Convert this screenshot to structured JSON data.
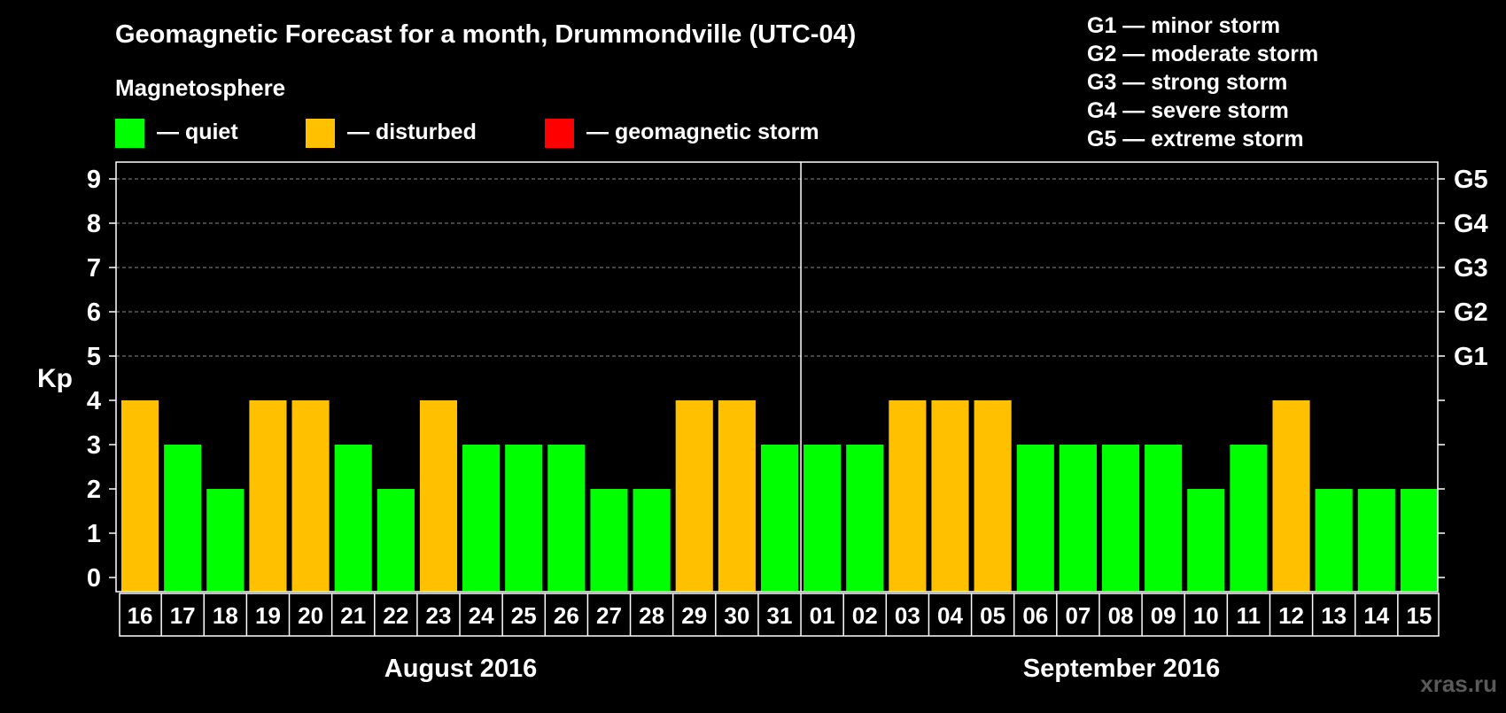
{
  "chart_data": {
    "type": "bar",
    "title": "Geomagnetic Forecast for a month, Drummondville (UTC-04)",
    "legend_title": "Magnetosphere",
    "legend": [
      {
        "label": "— quiet",
        "color": "#00ff00"
      },
      {
        "label": "— disturbed",
        "color": "#ffc000"
      },
      {
        "label": "— geomagnetic storm",
        "color": "#ff0000"
      }
    ],
    "storm_scale": [
      "G1 — minor storm",
      "G2 — moderate storm",
      "G3 — strong storm",
      "G4 — severe storm",
      "G5 — extreme storm"
    ],
    "ylabel": "Kp",
    "ylim": [
      0,
      9
    ],
    "y_ticks": [
      "0",
      "1",
      "2",
      "3",
      "4",
      "5",
      "6",
      "7",
      "8",
      "9"
    ],
    "right_ticks": [
      {
        "kp": 5,
        "label": "G1"
      },
      {
        "kp": 6,
        "label": "G2"
      },
      {
        "kp": 7,
        "label": "G3"
      },
      {
        "kp": 8,
        "label": "G4"
      },
      {
        "kp": 9,
        "label": "G5"
      }
    ],
    "categories": [
      "16",
      "17",
      "18",
      "19",
      "20",
      "21",
      "22",
      "23",
      "24",
      "25",
      "26",
      "27",
      "28",
      "29",
      "30",
      "31",
      "01",
      "02",
      "03",
      "04",
      "05",
      "06",
      "07",
      "08",
      "09",
      "10",
      "11",
      "12",
      "13",
      "14",
      "15"
    ],
    "values": [
      4,
      3,
      2,
      4,
      4,
      3,
      2,
      4,
      3,
      3,
      3,
      2,
      2,
      4,
      4,
      3,
      3,
      3,
      4,
      4,
      4,
      3,
      3,
      3,
      3,
      2,
      3,
      4,
      2,
      2,
      2
    ],
    "months": [
      {
        "label": "August 2016",
        "start_index": 0,
        "count": 16
      },
      {
        "label": "September 2016",
        "start_index": 16,
        "count": 15
      }
    ],
    "thresholds": {
      "disturbed": 4,
      "storm": 5
    }
  },
  "watermark": "xras.ru"
}
